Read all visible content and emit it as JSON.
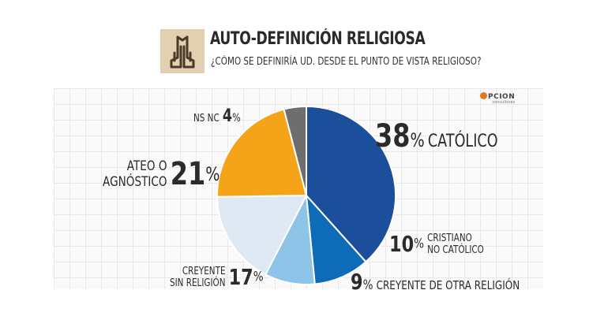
{
  "title": "AUTO-DEFINICIÓN RELIGIOSA",
  "subtitle": "¿CÓMO SE DEFINIRÍA UD. DESDE EL PUNTO DE VISTA RELIGIOSO?",
  "brand": {
    "name": "PCION",
    "tagline": "consultores"
  },
  "icon": "praying-hands-icon",
  "colors": {
    "catolico": "#1b4f9c",
    "cristiano": "#0d6bb8",
    "otra": "#8ec4e8",
    "sin_religion": "#dfe9f3",
    "ateo": "#f5a318",
    "ns_nc": "#6e6e6e"
  },
  "labels": {
    "catolico": {
      "value": "38",
      "pct": "%",
      "name": "CATÓLICO"
    },
    "cristiano": {
      "value": "10",
      "pct": "%",
      "line1": "CRISTIANO",
      "line2": "NO CATÓLICO"
    },
    "otra": {
      "value": "9",
      "pct": "%",
      "name": "CREYENTE DE OTRA RELIGIÓN"
    },
    "sin_religion": {
      "value": "17",
      "pct": "%",
      "line1": "CREYENTE",
      "line2": "SIN RELIGIÓN"
    },
    "ateo": {
      "value": "21",
      "pct": "%",
      "line1": "ATEO O",
      "line2": "AGNÓSTICO"
    },
    "ns_nc": {
      "value": "4",
      "pct": "%",
      "name": "NS NC"
    }
  },
  "chart_data": {
    "type": "pie",
    "title": "AUTO-DEFINICIÓN RELIGIOSA",
    "subtitle": "¿CÓMO SE DEFINIRÍA UD. DESDE EL PUNTO DE VISTA RELIGIOSO?",
    "categories": [
      "CATÓLICO",
      "CRISTIANO NO CATÓLICO",
      "CREYENTE DE OTRA RELIGIÓN",
      "CREYENTE SIN RELIGIÓN",
      "ATEO O AGNÓSTICO",
      "NS NC"
    ],
    "values": [
      38,
      10,
      9,
      17,
      21,
      4
    ],
    "unit": "%",
    "start": "top, clockwise",
    "legend": "none (direct labels)"
  }
}
